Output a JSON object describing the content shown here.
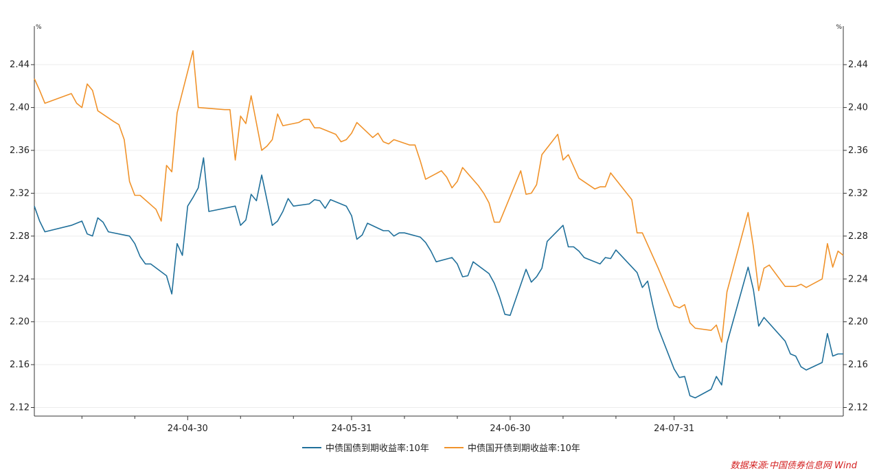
{
  "chart_data": {
    "type": "line",
    "y_unit_left": "%",
    "y_unit_right": "%",
    "ylim": [
      2.112,
      2.476
    ],
    "yticks": [
      "2.12",
      "2.16",
      "2.20",
      "2.24",
      "2.28",
      "2.32",
      "2.36",
      "2.40",
      "2.44"
    ],
    "xlim": [
      "2024-04-01",
      "2024-08-30"
    ],
    "xtick_labels": [
      {
        "date": "2024-04-30",
        "label": "24-04-30"
      },
      {
        "date": "2024-05-31",
        "label": "24-05-31"
      },
      {
        "date": "2024-06-30",
        "label": "24-06-30"
      },
      {
        "date": "2024-07-31",
        "label": "24-07-31"
      }
    ],
    "minor_tick_dates": [
      "2024-04-10",
      "2024-04-20",
      "2024-05-10",
      "2024-05-20",
      "2024-06-10",
      "2024-06-20",
      "2024-07-10",
      "2024-07-20",
      "2024-08-10",
      "2024-08-20"
    ],
    "grid": "horizontal",
    "legend_position": "bottom",
    "series": [
      {
        "name": "中债国债到期收益率:10年",
        "color": "#1f6f9a",
        "points": [
          [
            "2024-04-01",
            2.308
          ],
          [
            "2024-04-02",
            2.294
          ],
          [
            "2024-04-03",
            2.284
          ],
          [
            "2024-04-08",
            2.29
          ],
          [
            "2024-04-10",
            2.294
          ],
          [
            "2024-04-11",
            2.282
          ],
          [
            "2024-04-12",
            2.28
          ],
          [
            "2024-04-13",
            2.297
          ],
          [
            "2024-04-14",
            2.293
          ],
          [
            "2024-04-15",
            2.284
          ],
          [
            "2024-04-18",
            2.281
          ],
          [
            "2024-04-19",
            2.28
          ],
          [
            "2024-04-20",
            2.273
          ],
          [
            "2024-04-21",
            2.261
          ],
          [
            "2024-04-22",
            2.254
          ],
          [
            "2024-04-23",
            2.254
          ],
          [
            "2024-04-26",
            2.243
          ],
          [
            "2024-04-27",
            2.226
          ],
          [
            "2024-04-28",
            2.273
          ],
          [
            "2024-04-29",
            2.262
          ],
          [
            "2024-04-30",
            2.308
          ],
          [
            "2024-05-01",
            2.316
          ],
          [
            "2024-05-02",
            2.325
          ],
          [
            "2024-05-03",
            2.353
          ],
          [
            "2024-05-04",
            2.303
          ],
          [
            "2024-05-09",
            2.308
          ],
          [
            "2024-05-10",
            2.29
          ],
          [
            "2024-05-11",
            2.295
          ],
          [
            "2024-05-12",
            2.319
          ],
          [
            "2024-05-13",
            2.313
          ],
          [
            "2024-05-14",
            2.337
          ],
          [
            "2024-05-16",
            2.29
          ],
          [
            "2024-05-17",
            2.294
          ],
          [
            "2024-05-18",
            2.303
          ],
          [
            "2024-05-19",
            2.315
          ],
          [
            "2024-05-20",
            2.308
          ],
          [
            "2024-05-23",
            2.31
          ],
          [
            "2024-05-24",
            2.314
          ],
          [
            "2024-05-25",
            2.313
          ],
          [
            "2024-05-26",
            2.306
          ],
          [
            "2024-05-27",
            2.314
          ],
          [
            "2024-05-30",
            2.308
          ],
          [
            "2024-05-31",
            2.299
          ],
          [
            "2024-06-01",
            2.277
          ],
          [
            "2024-06-02",
            2.281
          ],
          [
            "2024-06-03",
            2.292
          ],
          [
            "2024-06-06",
            2.285
          ],
          [
            "2024-06-07",
            2.285
          ],
          [
            "2024-06-08",
            2.28
          ],
          [
            "2024-06-09",
            2.283
          ],
          [
            "2024-06-10",
            2.283
          ],
          [
            "2024-06-13",
            2.279
          ],
          [
            "2024-06-14",
            2.274
          ],
          [
            "2024-06-15",
            2.266
          ],
          [
            "2024-06-16",
            2.256
          ],
          [
            "2024-06-19",
            2.26
          ],
          [
            "2024-06-20",
            2.254
          ],
          [
            "2024-06-21",
            2.242
          ],
          [
            "2024-06-22",
            2.243
          ],
          [
            "2024-06-23",
            2.256
          ],
          [
            "2024-06-26",
            2.245
          ],
          [
            "2024-06-27",
            2.236
          ],
          [
            "2024-06-28",
            2.223
          ],
          [
            "2024-06-29",
            2.207
          ],
          [
            "2024-06-30",
            2.206
          ],
          [
            "2024-07-03",
            2.249
          ],
          [
            "2024-07-04",
            2.237
          ],
          [
            "2024-07-05",
            2.242
          ],
          [
            "2024-07-06",
            2.25
          ],
          [
            "2024-07-07",
            2.275
          ],
          [
            "2024-07-10",
            2.29
          ],
          [
            "2024-07-11",
            2.27
          ],
          [
            "2024-07-12",
            2.27
          ],
          [
            "2024-07-13",
            2.266
          ],
          [
            "2024-07-14",
            2.26
          ],
          [
            "2024-07-17",
            2.254
          ],
          [
            "2024-07-18",
            2.26
          ],
          [
            "2024-07-19",
            2.259
          ],
          [
            "2024-07-20",
            2.267
          ],
          [
            "2024-07-24",
            2.246
          ],
          [
            "2024-07-25",
            2.232
          ],
          [
            "2024-07-26",
            2.238
          ],
          [
            "2024-07-27",
            2.215
          ],
          [
            "2024-07-28",
            2.194
          ],
          [
            "2024-07-31",
            2.156
          ],
          [
            "2024-08-01",
            2.148
          ],
          [
            "2024-08-02",
            2.149
          ],
          [
            "2024-08-03",
            2.131
          ],
          [
            "2024-08-04",
            2.129
          ],
          [
            "2024-08-07",
            2.137
          ],
          [
            "2024-08-08",
            2.149
          ],
          [
            "2024-08-09",
            2.141
          ],
          [
            "2024-08-10",
            2.18
          ],
          [
            "2024-08-14",
            2.251
          ],
          [
            "2024-08-15",
            2.23
          ],
          [
            "2024-08-16",
            2.196
          ],
          [
            "2024-08-17",
            2.204
          ],
          [
            "2024-08-21",
            2.182
          ],
          [
            "2024-08-22",
            2.17
          ],
          [
            "2024-08-23",
            2.168
          ],
          [
            "2024-08-24",
            2.158
          ],
          [
            "2024-08-25",
            2.155
          ],
          [
            "2024-08-28",
            2.162
          ],
          [
            "2024-08-29",
            2.189
          ],
          [
            "2024-08-30",
            2.168
          ],
          [
            "2024-08-31",
            2.17
          ],
          [
            "2024-09-01",
            2.17
          ]
        ]
      },
      {
        "name": "中债国开债到期收益率:10年",
        "color": "#f0922a",
        "points": [
          [
            "2024-04-01",
            2.427
          ],
          [
            "2024-04-02",
            2.416
          ],
          [
            "2024-04-03",
            2.404
          ],
          [
            "2024-04-08",
            2.413
          ],
          [
            "2024-04-09",
            2.404
          ],
          [
            "2024-04-10",
            2.4
          ],
          [
            "2024-04-11",
            2.422
          ],
          [
            "2024-04-12",
            2.416
          ],
          [
            "2024-04-13",
            2.397
          ],
          [
            "2024-04-16",
            2.387
          ],
          [
            "2024-04-17",
            2.384
          ],
          [
            "2024-04-18",
            2.37
          ],
          [
            "2024-04-19",
            2.331
          ],
          [
            "2024-04-20",
            2.318
          ],
          [
            "2024-04-21",
            2.318
          ],
          [
            "2024-04-24",
            2.305
          ],
          [
            "2024-04-25",
            2.294
          ],
          [
            "2024-04-26",
            2.346
          ],
          [
            "2024-04-27",
            2.34
          ],
          [
            "2024-04-28",
            2.395
          ],
          [
            "2024-05-01",
            2.453
          ],
          [
            "2024-05-02",
            2.4
          ],
          [
            "2024-05-07",
            2.398
          ],
          [
            "2024-05-08",
            2.398
          ],
          [
            "2024-05-09",
            2.351
          ],
          [
            "2024-05-10",
            2.392
          ],
          [
            "2024-05-11",
            2.385
          ],
          [
            "2024-05-12",
            2.411
          ],
          [
            "2024-05-14",
            2.36
          ],
          [
            "2024-05-15",
            2.364
          ],
          [
            "2024-05-16",
            2.37
          ],
          [
            "2024-05-17",
            2.394
          ],
          [
            "2024-05-18",
            2.383
          ],
          [
            "2024-05-21",
            2.386
          ],
          [
            "2024-05-22",
            2.389
          ],
          [
            "2024-05-23",
            2.389
          ],
          [
            "2024-05-24",
            2.381
          ],
          [
            "2024-05-25",
            2.381
          ],
          [
            "2024-05-28",
            2.375
          ],
          [
            "2024-05-29",
            2.368
          ],
          [
            "2024-05-30",
            2.37
          ],
          [
            "2024-05-31",
            2.376
          ],
          [
            "2024-06-01",
            2.386
          ],
          [
            "2024-06-04",
            2.372
          ],
          [
            "2024-06-05",
            2.376
          ],
          [
            "2024-06-06",
            2.368
          ],
          [
            "2024-06-07",
            2.366
          ],
          [
            "2024-06-08",
            2.37
          ],
          [
            "2024-06-11",
            2.365
          ],
          [
            "2024-06-12",
            2.365
          ],
          [
            "2024-06-13",
            2.35
          ],
          [
            "2024-06-14",
            2.333
          ],
          [
            "2024-06-17",
            2.341
          ],
          [
            "2024-06-18",
            2.335
          ],
          [
            "2024-06-19",
            2.325
          ],
          [
            "2024-06-20",
            2.331
          ],
          [
            "2024-06-21",
            2.344
          ],
          [
            "2024-06-24",
            2.327
          ],
          [
            "2024-06-25",
            2.32
          ],
          [
            "2024-06-26",
            2.311
          ],
          [
            "2024-06-27",
            2.293
          ],
          [
            "2024-06-28",
            2.293
          ],
          [
            "2024-07-02",
            2.341
          ],
          [
            "2024-07-03",
            2.319
          ],
          [
            "2024-07-04",
            2.32
          ],
          [
            "2024-07-05",
            2.328
          ],
          [
            "2024-07-06",
            2.356
          ],
          [
            "2024-07-09",
            2.375
          ],
          [
            "2024-07-10",
            2.351
          ],
          [
            "2024-07-11",
            2.356
          ],
          [
            "2024-07-12",
            2.345
          ],
          [
            "2024-07-13",
            2.334
          ],
          [
            "2024-07-16",
            2.324
          ],
          [
            "2024-07-17",
            2.326
          ],
          [
            "2024-07-18",
            2.326
          ],
          [
            "2024-07-19",
            2.339
          ],
          [
            "2024-07-23",
            2.314
          ],
          [
            "2024-07-24",
            2.283
          ],
          [
            "2024-07-25",
            2.283
          ],
          [
            "2024-07-28",
            2.25
          ],
          [
            "2024-07-31",
            2.215
          ],
          [
            "2024-08-01",
            2.213
          ],
          [
            "2024-08-02",
            2.216
          ],
          [
            "2024-08-03",
            2.199
          ],
          [
            "2024-08-04",
            2.194
          ],
          [
            "2024-08-07",
            2.192
          ],
          [
            "2024-08-08",
            2.197
          ],
          [
            "2024-08-09",
            2.181
          ],
          [
            "2024-08-10",
            2.228
          ],
          [
            "2024-08-14",
            2.302
          ],
          [
            "2024-08-15",
            2.27
          ],
          [
            "2024-08-16",
            2.229
          ],
          [
            "2024-08-17",
            2.25
          ],
          [
            "2024-08-18",
            2.253
          ],
          [
            "2024-08-21",
            2.233
          ],
          [
            "2024-08-22",
            2.233
          ],
          [
            "2024-08-23",
            2.233
          ],
          [
            "2024-08-24",
            2.235
          ],
          [
            "2024-08-25",
            2.232
          ],
          [
            "2024-08-28",
            2.24
          ],
          [
            "2024-08-29",
            2.273
          ],
          [
            "2024-08-30",
            2.251
          ],
          [
            "2024-08-31",
            2.266
          ],
          [
            "2024-09-01",
            2.262
          ]
        ]
      }
    ],
    "source_text": "数据来源:中国债券信息网 Wind"
  }
}
